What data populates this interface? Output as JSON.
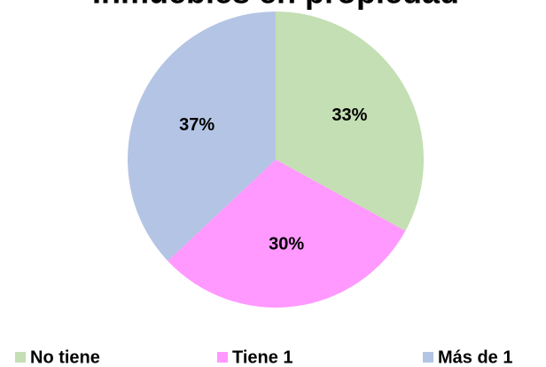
{
  "chart_data": {
    "type": "pie",
    "title": "Inmuebles en propiedad",
    "categories": [
      "No tiene",
      "Tiene 1",
      "Más de 1"
    ],
    "values": [
      33,
      30,
      37
    ],
    "value_labels": [
      "33%",
      "30%",
      "37%"
    ],
    "colors": [
      "#c4dfb3",
      "#ff99ff",
      "#b4c4e4"
    ],
    "legend": "bottom"
  }
}
